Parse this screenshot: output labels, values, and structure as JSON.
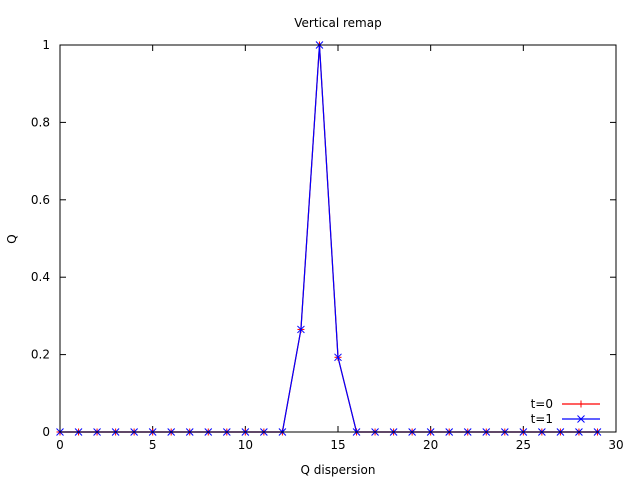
{
  "chart_data": {
    "type": "line",
    "title": "Vertical remap",
    "xlabel": "Q dispersion",
    "ylabel": "Q",
    "xlim": [
      0,
      30
    ],
    "ylim": [
      0,
      1
    ],
    "xticks": [
      0,
      5,
      10,
      15,
      20,
      25,
      30
    ],
    "yticks": [
      0,
      0.2,
      0.4,
      0.6,
      0.8,
      1
    ],
    "ytick_labels": [
      "0",
      "0.2",
      "0.4",
      "0.6",
      "0.8",
      "1"
    ],
    "grid": false,
    "legend_position": "bottom-right",
    "x": [
      0,
      1,
      2,
      3,
      4,
      5,
      6,
      7,
      8,
      9,
      10,
      11,
      12,
      13,
      14,
      15,
      16,
      17,
      18,
      19,
      20,
      21,
      22,
      23,
      24,
      25,
      26,
      27,
      28,
      29
    ],
    "series": [
      {
        "name": "t=0",
        "color": "#ff0000",
        "marker": "plus",
        "values": [
          0,
          0,
          0,
          0,
          0,
          0,
          0,
          0,
          0,
          0,
          0,
          0,
          0,
          0.265,
          1,
          0.193,
          0,
          0,
          0,
          0,
          0,
          0,
          0,
          0,
          0,
          0,
          0,
          0,
          0,
          0
        ]
      },
      {
        "name": "t=1",
        "color": "#0000ff",
        "marker": "cross",
        "values": [
          0,
          0,
          0,
          0,
          0,
          0,
          0,
          0,
          0,
          0,
          0,
          0,
          0,
          0.265,
          1,
          0.193,
          0,
          0,
          0,
          0,
          0,
          0,
          0,
          0,
          0,
          0,
          0,
          0,
          0,
          0
        ]
      }
    ]
  }
}
